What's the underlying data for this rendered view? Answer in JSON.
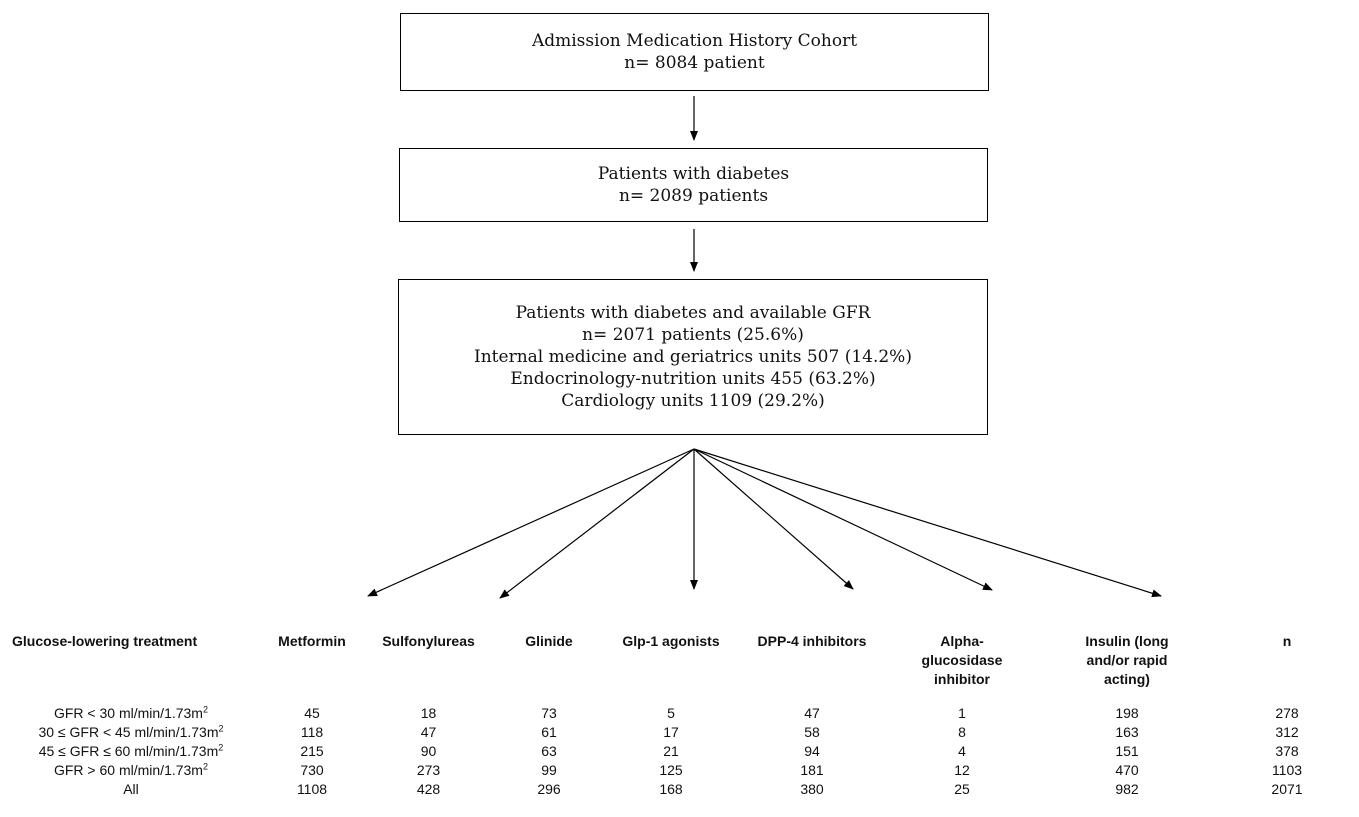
{
  "boxes": {
    "cohort": {
      "line1": "Admission Medication History Cohort",
      "line2": "n= 8084 patient"
    },
    "diabetes": {
      "line1": "Patients with diabetes",
      "line2": "n= 2089 patients"
    },
    "gfr": {
      "line1": "Patients with diabetes and available GFR",
      "line2": "n= 2071 patients (25.6%)",
      "line3": "Internal medicine and geriatrics units 507 (14.2%)",
      "line4": "Endocrinology-nutrition units 455 (63.2%)",
      "line5": "Cardiology units 1109 (29.2%)"
    }
  },
  "table": {
    "headers": [
      "Glucose-lowering treatment",
      "Metformin",
      "Sulfonylureas",
      "Glinide",
      "Glp-1 agonists",
      "DPP-4 inhibitors",
      "Alpha-glucosidase inhibitor",
      "Insulin (long and/or rapid acting)",
      "n"
    ],
    "rows": [
      {
        "label": "GFR < 30 ml/min/1.73m",
        "sup": "2",
        "values": [
          "45",
          "18",
          "73",
          "5",
          "47",
          "1",
          "198",
          "278"
        ]
      },
      {
        "label": "30 ≤ GFR < 45 ml/min/1.73m",
        "sup": "2",
        "values": [
          "118",
          "47",
          "61",
          "17",
          "58",
          "8",
          "163",
          "312"
        ]
      },
      {
        "label": "45 ≤ GFR ≤ 60 ml/min/1.73m",
        "sup": "2",
        "values": [
          "215",
          "90",
          "63",
          "21",
          "94",
          "4",
          "151",
          "378"
        ]
      },
      {
        "label": "GFR > 60 ml/min/1.73m",
        "sup": "2",
        "values": [
          "730",
          "273",
          "99",
          "125",
          "181",
          "12",
          "470",
          "1103"
        ]
      },
      {
        "label": "All",
        "sup": "",
        "values": [
          "1108",
          "428",
          "296",
          "168",
          "380",
          "25",
          "982",
          "2071"
        ]
      }
    ]
  }
}
